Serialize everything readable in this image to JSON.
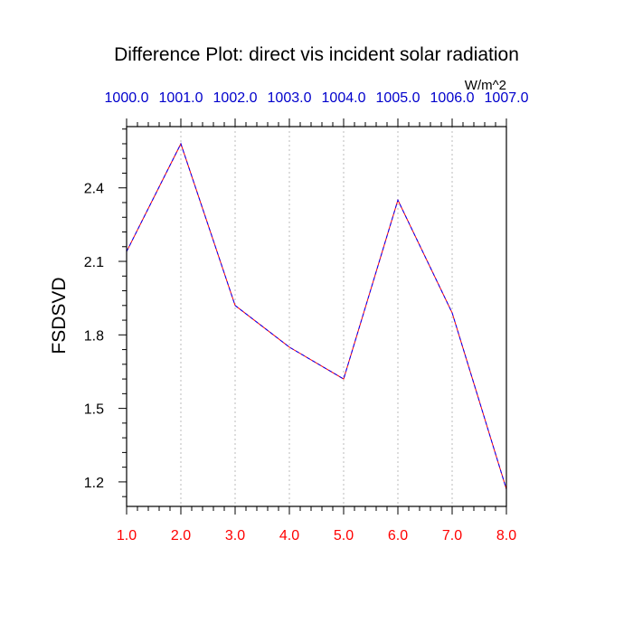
{
  "chart_data": {
    "type": "line",
    "title": "Difference Plot: direct vis incident solar radiation",
    "units": "W/m^2",
    "ylabel": "FSDSVD",
    "xlabel": "",
    "x": [
      1.0,
      2.0,
      3.0,
      4.0,
      5.0,
      6.0,
      7.0,
      8.0
    ],
    "xlim": [
      1.0,
      8.0
    ],
    "ylim": [
      1.1,
      2.65
    ],
    "x_tick_labels": [
      "1.0",
      "2.0",
      "3.0",
      "4.0",
      "5.0",
      "6.0",
      "7.0",
      "8.0"
    ],
    "top_tick_labels": [
      "1000.0",
      "1001.0",
      "1002.0",
      "1003.0",
      "1004.0",
      "1005.0",
      "1006.0",
      "1007.0"
    ],
    "y_ticks": [
      1.2,
      1.5,
      1.8,
      2.1,
      2.4
    ],
    "y_tick_labels": [
      "1.2",
      "1.5",
      "1.8",
      "2.1",
      "2.4"
    ],
    "vertical_grid": true,
    "series": [
      {
        "values": [
          2.14,
          2.58,
          1.92,
          1.75,
          1.62,
          2.35,
          1.89,
          1.17
        ],
        "colors": [
          "#ff0000",
          "#0000ff"
        ],
        "dash": "dashed"
      }
    ],
    "colors": {
      "bottom_ticks": "#ff0000",
      "top_ticks": "#0000cc",
      "left_ticks": "#000000",
      "grid": "#bbbbbb",
      "frame": "#000000"
    }
  }
}
